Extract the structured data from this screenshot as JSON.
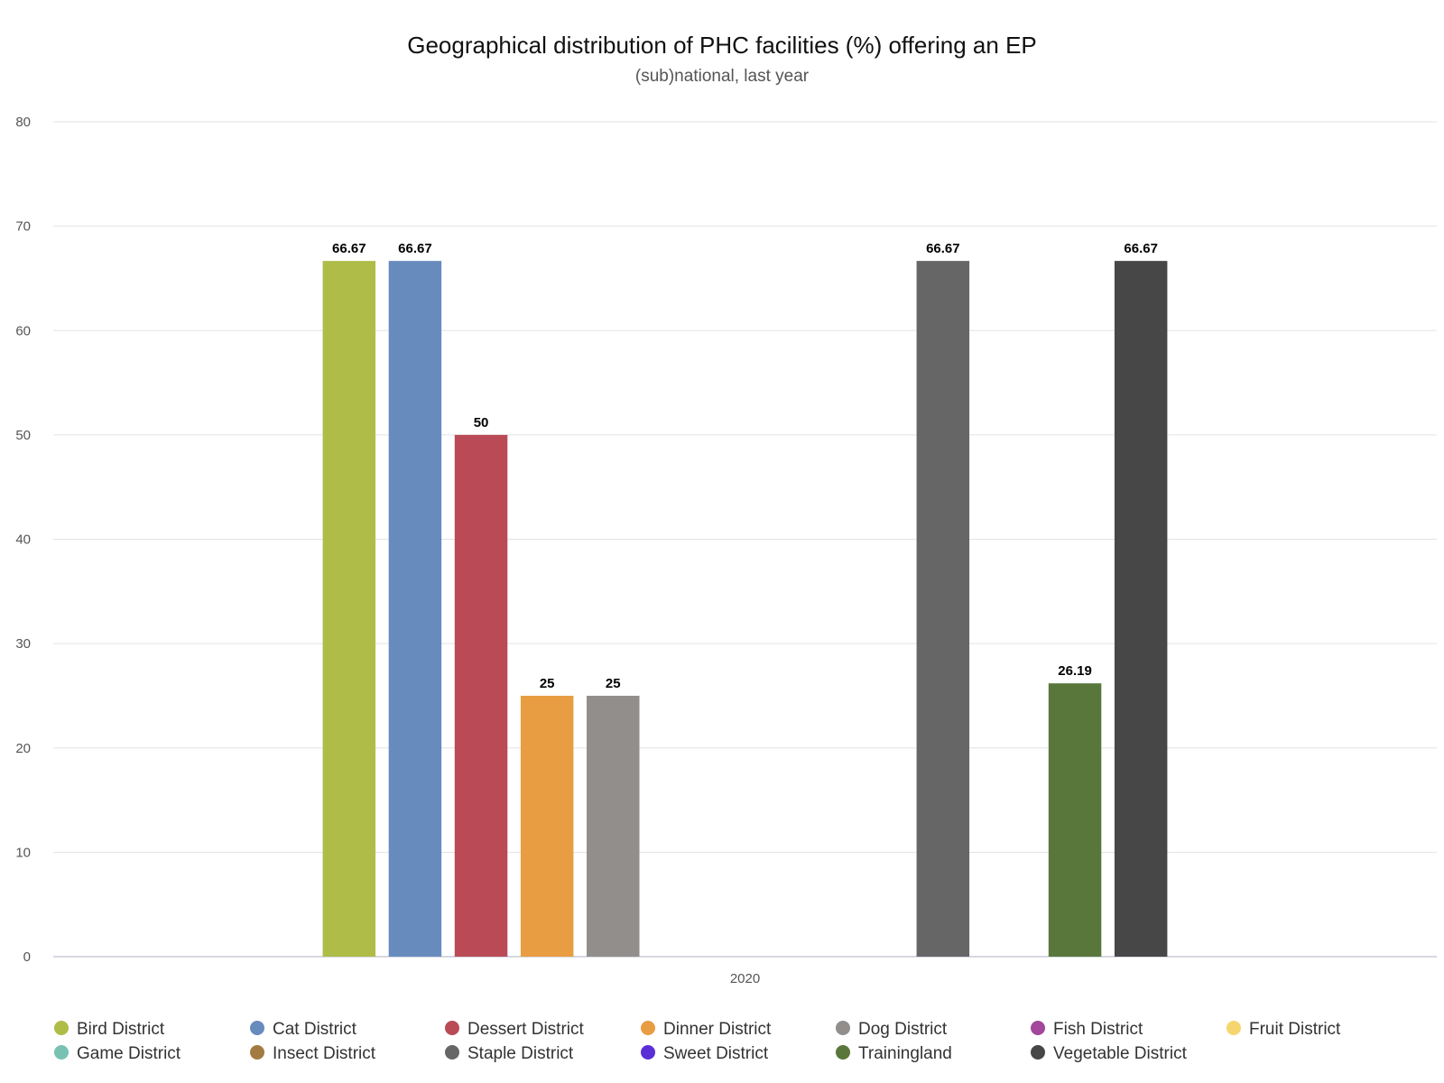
{
  "chart_data": {
    "type": "bar",
    "title": "Geographical distribution of PHC facilities (%) offering an EP",
    "subtitle": "(sub)national, last year",
    "categories": [
      "2020"
    ],
    "ylim": [
      0,
      80
    ],
    "yticks": [
      0,
      10,
      20,
      30,
      40,
      50,
      60,
      70,
      80
    ],
    "grid": true,
    "legend_position": "bottom",
    "series": [
      {
        "name": "Bird District",
        "values": [
          66.67
        ],
        "color": "#afbd48"
      },
      {
        "name": "Cat District",
        "values": [
          66.67
        ],
        "color": "#688bbe"
      },
      {
        "name": "Dessert District",
        "values": [
          50
        ],
        "color": "#b94a56"
      },
      {
        "name": "Dinner District",
        "values": [
          25
        ],
        "color": "#e89d42"
      },
      {
        "name": "Dog District",
        "values": [
          25
        ],
        "color": "#918e8c"
      },
      {
        "name": "Fish District",
        "values": [
          null
        ],
        "color": "#a2479c"
      },
      {
        "name": "Fruit District",
        "values": [
          null
        ],
        "color": "#f5d66e"
      },
      {
        "name": "Game District",
        "values": [
          null
        ],
        "color": "#77c2b3"
      },
      {
        "name": "Insect District",
        "values": [
          null
        ],
        "color": "#a37a41"
      },
      {
        "name": "Staple District",
        "values": [
          66.67
        ],
        "color": "#666666"
      },
      {
        "name": "Sweet District",
        "values": [
          null
        ],
        "color": "#5b2fd6"
      },
      {
        "name": "Trainingland",
        "values": [
          26.19
        ],
        "color": "#5a773b"
      },
      {
        "name": "Vegetable District",
        "values": [
          66.67
        ],
        "color": "#474747"
      }
    ]
  }
}
